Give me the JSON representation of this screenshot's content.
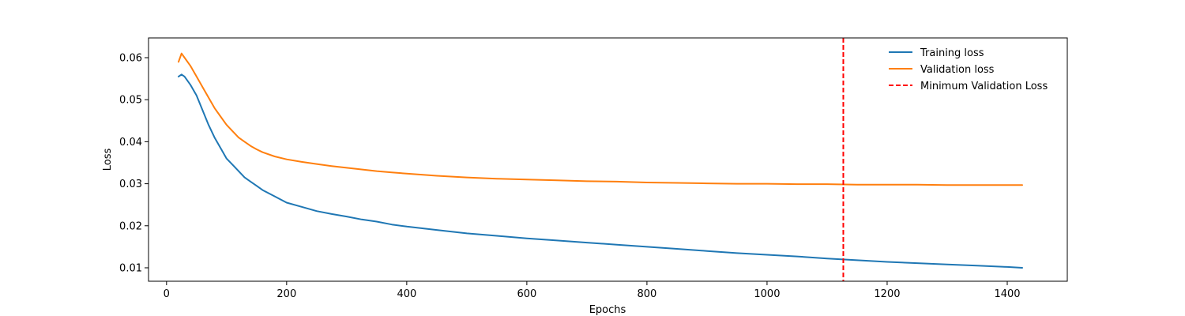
{
  "chart_data": {
    "type": "line",
    "title": "",
    "xlabel": "Epochs",
    "ylabel": "Loss",
    "xlim": [
      -30,
      1500
    ],
    "ylim": [
      0.0068,
      0.0647
    ],
    "xticks": [
      0,
      200,
      400,
      600,
      800,
      1000,
      1200,
      1400
    ],
    "yticks": [
      0.01,
      0.02,
      0.03,
      0.04,
      0.05,
      0.06
    ],
    "xtick_labels": [
      "0",
      "200",
      "400",
      "600",
      "800",
      "1000",
      "1200",
      "1400"
    ],
    "ytick_labels": [
      "0.01",
      "0.02",
      "0.03",
      "0.04",
      "0.05",
      "0.06"
    ],
    "grid": false,
    "legend": "top-right",
    "series": [
      {
        "name": "Training loss",
        "color": "#1f77b4",
        "x": [
          20,
          25,
          30,
          40,
          50,
          60,
          70,
          80,
          90,
          100,
          110,
          120,
          130,
          140,
          150,
          160,
          180,
          200,
          225,
          250,
          275,
          300,
          325,
          350,
          375,
          400,
          450,
          500,
          550,
          600,
          650,
          700,
          750,
          800,
          850,
          900,
          950,
          1000,
          1050,
          1100,
          1150,
          1200,
          1250,
          1300,
          1350,
          1400,
          1425
        ],
        "y": [
          0.0555,
          0.056,
          0.0555,
          0.0535,
          0.051,
          0.0475,
          0.044,
          0.041,
          0.0385,
          0.036,
          0.0345,
          0.033,
          0.0315,
          0.0305,
          0.0295,
          0.0285,
          0.027,
          0.0255,
          0.0245,
          0.0235,
          0.0228,
          0.0222,
          0.0215,
          0.021,
          0.0203,
          0.0198,
          0.019,
          0.0182,
          0.0176,
          0.017,
          0.0165,
          0.016,
          0.0155,
          0.015,
          0.0145,
          0.014,
          0.0135,
          0.0131,
          0.0127,
          0.0122,
          0.0118,
          0.0114,
          0.0111,
          0.0108,
          0.0105,
          0.0102,
          0.01
        ]
      },
      {
        "name": "Validation loss",
        "color": "#ff7f0e",
        "x": [
          20,
          25,
          30,
          40,
          50,
          60,
          70,
          80,
          90,
          100,
          110,
          120,
          130,
          140,
          150,
          160,
          180,
          200,
          225,
          250,
          275,
          300,
          325,
          350,
          375,
          400,
          450,
          500,
          550,
          600,
          650,
          700,
          750,
          800,
          850,
          900,
          950,
          1000,
          1050,
          1100,
          1150,
          1200,
          1250,
          1300,
          1350,
          1400,
          1425
        ],
        "y": [
          0.059,
          0.061,
          0.06,
          0.058,
          0.0555,
          0.053,
          0.0505,
          0.048,
          0.046,
          0.044,
          0.0425,
          0.041,
          0.04,
          0.039,
          0.0382,
          0.0375,
          0.0365,
          0.0358,
          0.0352,
          0.0347,
          0.0342,
          0.0338,
          0.0334,
          0.033,
          0.0327,
          0.0324,
          0.0319,
          0.0315,
          0.0312,
          0.031,
          0.0308,
          0.0306,
          0.0305,
          0.0303,
          0.0302,
          0.0301,
          0.03,
          0.03,
          0.0299,
          0.0299,
          0.0298,
          0.0298,
          0.0298,
          0.0297,
          0.0297,
          0.0297,
          0.0297
        ]
      }
    ],
    "annotations": [
      {
        "name": "Minimum Validation Loss",
        "type": "vline",
        "x": 1127,
        "color": "#ff0000",
        "style": "dashed"
      }
    ]
  }
}
